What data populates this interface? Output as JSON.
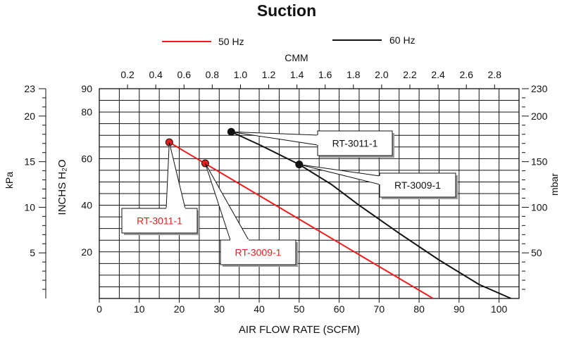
{
  "chart_data": {
    "type": "line",
    "title": "Suction",
    "xlabel": "AIR FLOW RATE (SCFM)",
    "ylabel": "INCHS H₂O",
    "x2label": "CMM",
    "y2left_label": "kPa",
    "y2right_label": "mbar",
    "xlim": [
      0,
      105
    ],
    "ylim": [
      0,
      90
    ],
    "x_ticks": [
      0,
      10,
      20,
      30,
      40,
      50,
      60,
      70,
      80,
      90,
      100
    ],
    "y_ticks": [
      20,
      40,
      60,
      80,
      90
    ],
    "cmm_ticks": [
      {
        "v": 0.2,
        "label": "0.2"
      },
      {
        "v": 0.4,
        "label": "0.4"
      },
      {
        "v": 0.6,
        "label": "0.6"
      },
      {
        "v": 0.8,
        "label": "0.8"
      },
      {
        "v": 1.0,
        "label": "1.0"
      },
      {
        "v": 1.2,
        "label": "1.2"
      },
      {
        "v": 1.4,
        "label": "1.4"
      },
      {
        "v": 1.6,
        "label": "1.6"
      },
      {
        "v": 1.8,
        "label": "1.8"
      },
      {
        "v": 2.0,
        "label": "2.0"
      },
      {
        "v": 2.2,
        "label": "2.2"
      },
      {
        "v": 2.4,
        "label": "2.4"
      },
      {
        "v": 2.6,
        "label": "2.6"
      },
      {
        "v": 2.8,
        "label": "2.8"
      }
    ],
    "kpa_ticks": [
      {
        "v": 5,
        "label": "5"
      },
      {
        "v": 10,
        "label": "10"
      },
      {
        "v": 15,
        "label": "15"
      },
      {
        "v": 20,
        "label": "20"
      },
      {
        "v": 23,
        "label": "23"
      }
    ],
    "mbar_ticks": [
      {
        "v": 50,
        "label": "50"
      },
      {
        "v": 100,
        "label": "100"
      },
      {
        "v": 150,
        "label": "150"
      },
      {
        "v": 200,
        "label": "200"
      },
      {
        "v": 230,
        "label": "230"
      }
    ],
    "grid": true,
    "legend_position": "top",
    "series": [
      {
        "name": "50 Hz",
        "color": "#ee1c1c",
        "x": [
          17.5,
          83.5
        ],
        "y": [
          67,
          0
        ]
      },
      {
        "name": "60 Hz",
        "color": "#111111",
        "x": [
          33,
          40,
          50,
          58,
          65,
          75,
          85,
          95,
          103
        ],
        "y": [
          71.5,
          66,
          57.5,
          49,
          40,
          28,
          16.5,
          6,
          0
        ]
      }
    ],
    "markers": [
      {
        "series": "50 Hz",
        "x": 17.5,
        "y": 67,
        "color": "#ee1c1c"
      },
      {
        "series": "50 Hz",
        "x": 26.5,
        "y": 58,
        "color": "#ee1c1c"
      },
      {
        "series": "60 Hz",
        "x": 33,
        "y": 71.5,
        "color": "#111111"
      },
      {
        "series": "60 Hz",
        "x": 50,
        "y": 57.5,
        "color": "#111111"
      }
    ],
    "annotations": [
      {
        "text": "RT-3011-1",
        "color": "#111111"
      },
      {
        "text": "RT-3009-1",
        "color": "#111111"
      },
      {
        "text": "RT-3011-1",
        "color": "#ee1c1c"
      },
      {
        "text": "RT-3009-1",
        "color": "#ee1c1c"
      }
    ]
  }
}
